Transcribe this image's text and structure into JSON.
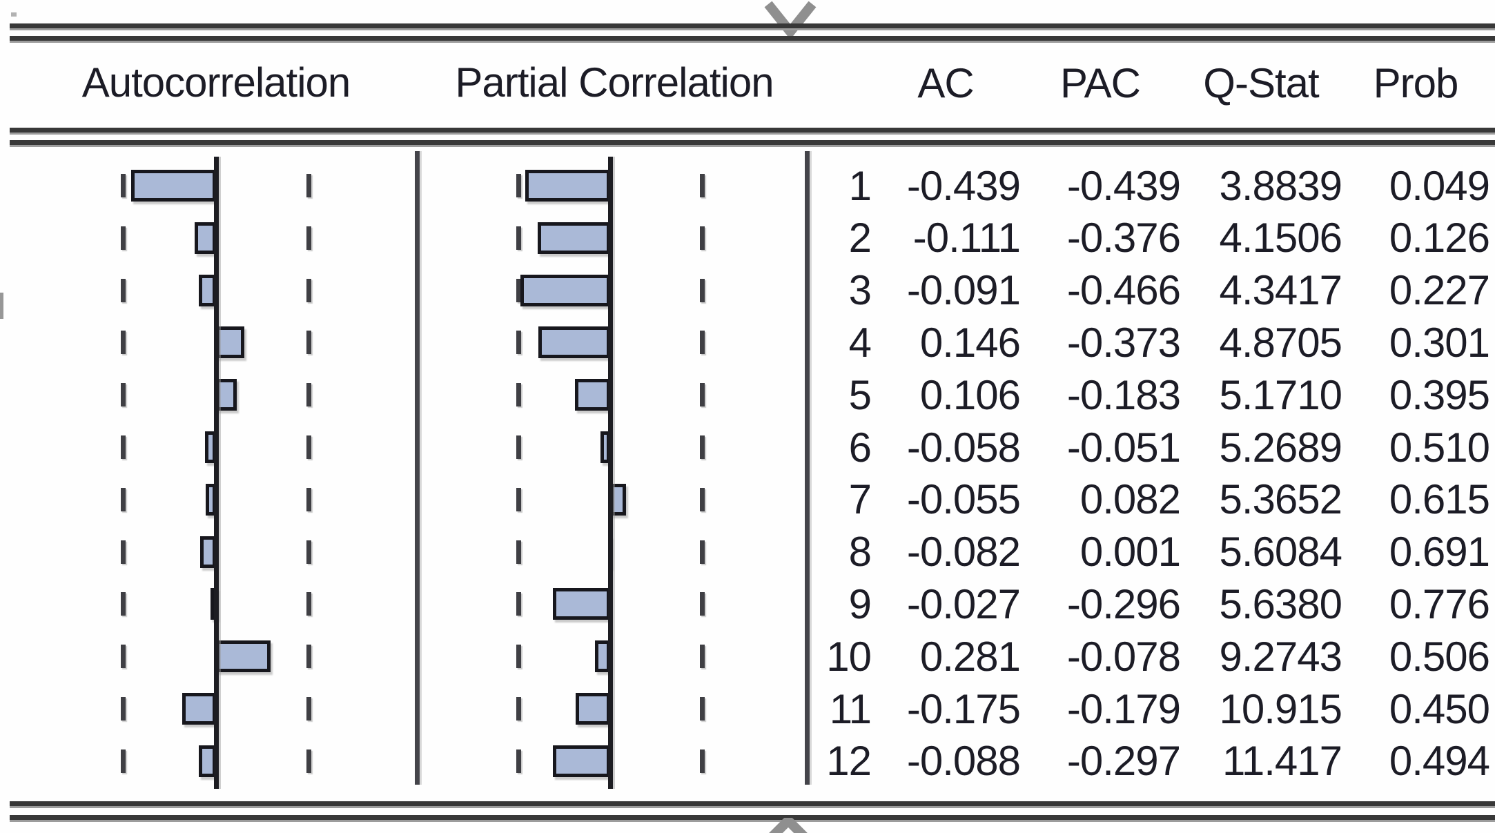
{
  "table": {
    "headers": {
      "autocorrelation": "Autocorrelation",
      "partial_correlation": "Partial Correlation",
      "ac": "AC",
      "pac": "PAC",
      "q_stat": "Q-Stat",
      "prob": "Prob"
    }
  },
  "scroll_indicators": {
    "top_icon": "chevron-down-icon",
    "bottom_icon": "chevron-up-icon",
    "color": "#8f8f8f"
  },
  "colors": {
    "bar_fill": "#aab9d7",
    "bar_border": "#17171d",
    "grid_line": "#3f3f44",
    "text": "#1c1c26"
  },
  "chart_data": {
    "type": "bar",
    "orientation": "horizontal",
    "panels": [
      "Autocorrelation",
      "Partial Correlation"
    ],
    "confidence_band": 0.48,
    "xlim": [
      -0.48,
      0.48
    ],
    "lags": [
      1,
      2,
      3,
      4,
      5,
      6,
      7,
      8,
      9,
      10,
      11,
      12
    ],
    "series": [
      {
        "name": "AC",
        "values": [
          -0.439,
          -0.111,
          -0.091,
          0.146,
          0.106,
          -0.058,
          -0.055,
          -0.082,
          -0.027,
          0.281,
          -0.175,
          -0.088
        ]
      },
      {
        "name": "PAC",
        "values": [
          -0.439,
          -0.376,
          -0.466,
          -0.373,
          -0.183,
          -0.051,
          0.082,
          0.001,
          -0.296,
          -0.078,
          -0.179,
          -0.297
        ]
      },
      {
        "name": "Q-Stat",
        "values": [
          3.8839,
          4.1506,
          4.3417,
          4.8705,
          5.171,
          5.2689,
          5.3652,
          5.6084,
          5.638,
          9.2743,
          10.915,
          11.417
        ]
      },
      {
        "name": "Prob",
        "values": [
          0.049,
          0.126,
          0.227,
          0.301,
          0.395,
          0.51,
          0.615,
          0.691,
          0.776,
          0.506,
          0.45,
          0.494
        ]
      }
    ],
    "rows": [
      {
        "lag": "1",
        "ac": "-0.439",
        "pac": "-0.439",
        "q": "3.8839",
        "prob": "0.049"
      },
      {
        "lag": "2",
        "ac": "-0.111",
        "pac": "-0.376",
        "q": "4.1506",
        "prob": "0.126"
      },
      {
        "lag": "3",
        "ac": "-0.091",
        "pac": "-0.466",
        "q": "4.3417",
        "prob": "0.227"
      },
      {
        "lag": "4",
        "ac": "0.146",
        "pac": "-0.373",
        "q": "4.8705",
        "prob": "0.301"
      },
      {
        "lag": "5",
        "ac": "0.106",
        "pac": "-0.183",
        "q": "5.1710",
        "prob": "0.395"
      },
      {
        "lag": "6",
        "ac": "-0.058",
        "pac": "-0.051",
        "q": "5.2689",
        "prob": "0.510"
      },
      {
        "lag": "7",
        "ac": "-0.055",
        "pac": "0.082",
        "q": "5.3652",
        "prob": "0.615"
      },
      {
        "lag": "8",
        "ac": "-0.082",
        "pac": "0.001",
        "q": "5.6084",
        "prob": "0.691"
      },
      {
        "lag": "9",
        "ac": "-0.027",
        "pac": "-0.296",
        "q": "5.6380",
        "prob": "0.776"
      },
      {
        "lag": "10",
        "ac": "0.281",
        "pac": "-0.078",
        "q": "9.2743",
        "prob": "0.506"
      },
      {
        "lag": "11",
        "ac": "-0.175",
        "pac": "-0.179",
        "q": "10.915",
        "prob": "0.450"
      },
      {
        "lag": "12",
        "ac": "-0.088",
        "pac": "-0.297",
        "q": "11.417",
        "prob": "0.494"
      }
    ]
  }
}
